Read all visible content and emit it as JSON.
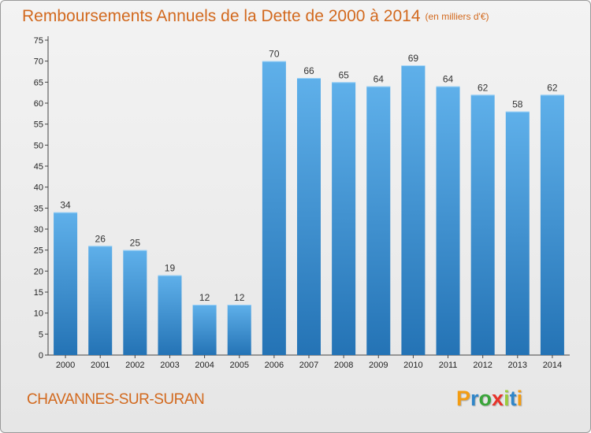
{
  "chart_data": {
    "type": "bar",
    "title": "Remboursements Annuels de la Dette de 2000 à 2014",
    "unit": "(en milliers d'€)",
    "categories": [
      "2000",
      "2001",
      "2002",
      "2003",
      "2004",
      "2005",
      "2006",
      "2007",
      "2008",
      "2009",
      "2010",
      "2011",
      "2012",
      "2013",
      "2014"
    ],
    "values": [
      34,
      26,
      25,
      19,
      12,
      12,
      70,
      66,
      65,
      64,
      69,
      64,
      62,
      58,
      62
    ],
    "ylim": [
      0,
      75
    ],
    "yticks": [
      0,
      5,
      10,
      15,
      20,
      25,
      30,
      35,
      40,
      45,
      50,
      55,
      60,
      65,
      70,
      75
    ],
    "grid": false,
    "xlabel": "",
    "ylabel": ""
  },
  "commune": "CHAVANNES-SUR-SURAN",
  "logo": {
    "letters": [
      "P",
      "r",
      "o",
      "x",
      "i",
      "t",
      "i"
    ],
    "colors": [
      "#f39c12",
      "#2f86c9",
      "#3aa53a",
      "#e8332a",
      "#9ccc3c",
      "#2f86c9",
      "#f39c12"
    ]
  },
  "colors": {
    "title": "#d2691e",
    "bar_top": "#5fb0ea",
    "bar_bottom": "#2473b5",
    "axis": "#444444"
  }
}
